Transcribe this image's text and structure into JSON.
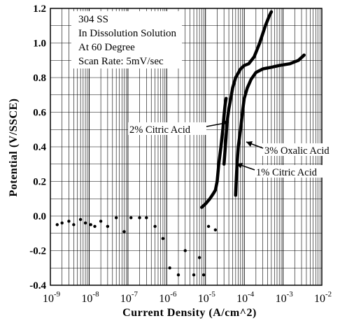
{
  "chart_data": {
    "type": "line",
    "xlabel": "Current Density (A/cm^2)",
    "ylabel": "Potential (V/SSCE)",
    "xscale": "log",
    "xlim": [
      1e-09,
      0.01
    ],
    "ylim": [
      -0.4,
      1.2
    ],
    "x_ticks": [
      {
        "base": "10",
        "exp": "-9",
        "value": 1e-09
      },
      {
        "base": "10",
        "exp": "-8",
        "value": 1e-08
      },
      {
        "base": "10",
        "exp": "-7",
        "value": 1e-07
      },
      {
        "base": "10",
        "exp": "-6",
        "value": 1e-06
      },
      {
        "base": "10",
        "exp": "-5",
        "value": 1e-05
      },
      {
        "base": "10",
        "exp": "-4",
        "value": 0.0001
      },
      {
        "base": "10",
        "exp": "-3",
        "value": 0.001
      },
      {
        "base": "10",
        "exp": "-2",
        "value": 0.01
      }
    ],
    "y_ticks": [
      {
        "label": "1.2",
        "value": 1.2
      },
      {
        "label": "1.0",
        "value": 1.0
      },
      {
        "label": "0.8",
        "value": 0.8
      },
      {
        "label": "0.6",
        "value": 0.6
      },
      {
        "label": "0.4",
        "value": 0.4
      },
      {
        "label": "0.2",
        "value": 0.2
      },
      {
        "label": "0.0",
        "value": 0.0
      },
      {
        "label": "-0.2",
        "value": -0.2
      },
      {
        "label": "-0.4",
        "value": -0.4
      }
    ],
    "grid": true,
    "annotation_lines": [
      "304 SS",
      "In Dissolution Solution",
      "At 60 Degree",
      "Scan Rate: 5mV/sec"
    ],
    "series": [
      {
        "name": "2% Citric Acid",
        "x": [
          3e-05,
          3.2e-05,
          3.4e-05,
          3.6e-05,
          4e-05,
          4.5e-05,
          5e-05,
          6e-05,
          8e-05,
          0.0001,
          0.00013,
          0.00018,
          0.00025,
          0.00035,
          0.00045,
          0.0005
        ],
        "y": [
          0.3,
          0.38,
          0.46,
          0.54,
          0.62,
          0.68,
          0.74,
          0.8,
          0.85,
          0.87,
          0.88,
          0.92,
          1.0,
          1.1,
          1.16,
          1.18
        ]
      },
      {
        "name": "3% Oxalic Acid",
        "x": [
          6e-05,
          6.2e-05,
          6.5e-05,
          7e-05,
          8e-05,
          9e-05,
          0.0001,
          0.00012,
          0.00015,
          0.0002,
          0.0003,
          0.0005,
          0.0008,
          0.0015,
          0.0025,
          0.0035
        ],
        "y": [
          0.12,
          0.2,
          0.3,
          0.4,
          0.5,
          0.6,
          0.68,
          0.74,
          0.79,
          0.83,
          0.85,
          0.86,
          0.87,
          0.88,
          0.9,
          0.93
        ]
      },
      {
        "name": "1% Citric Acid",
        "x": [
          8e-06,
          1e-05,
          1.3e-05,
          1.6e-05,
          1.8e-05,
          2e-05,
          2.2e-05,
          2.5e-05,
          2.8e-05,
          3e-05,
          3.2e-05,
          3.4e-05
        ],
        "y": [
          0.05,
          0.07,
          0.1,
          0.13,
          0.15,
          0.2,
          0.3,
          0.4,
          0.5,
          0.58,
          0.64,
          0.68
        ]
      }
    ],
    "scatter_points": {
      "x": [
        1.5e-09,
        2e-09,
        3e-09,
        4e-09,
        6e-09,
        8e-09,
        1.1e-08,
        1.4e-08,
        2e-08,
        3e-08,
        5e-08,
        8e-08,
        1.2e-07,
        2e-07,
        3e-07,
        5e-07,
        8e-07,
        1.2e-06,
        2e-06,
        3e-06,
        5e-06,
        7e-06,
        9e-06,
        1.2e-05,
        1.8e-05
      ],
      "y": [
        -0.05,
        -0.04,
        -0.03,
        -0.05,
        -0.02,
        -0.04,
        -0.05,
        -0.06,
        -0.03,
        -0.06,
        -0.01,
        -0.09,
        -0.01,
        -0.01,
        -0.01,
        -0.06,
        -0.13,
        -0.3,
        -0.34,
        -0.2,
        -0.34,
        -0.24,
        -0.34,
        -0.06,
        -0.08
      ]
    }
  }
}
